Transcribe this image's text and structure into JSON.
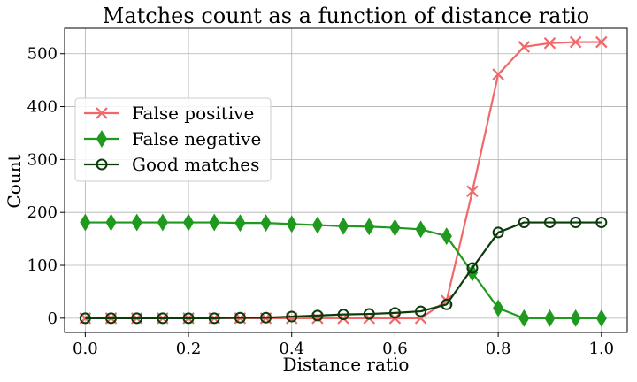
{
  "chart_data": {
    "type": "line",
    "title": "Matches count as a function of distance ratio",
    "xlabel": "Distance ratio",
    "ylabel": "Count",
    "xlim": [
      -0.04,
      1.05
    ],
    "ylim": [
      -27,
      548
    ],
    "xticks": [
      0.0,
      0.2,
      0.4,
      0.6,
      0.8,
      1.0
    ],
    "xtick_labels": [
      "0.0",
      "0.2",
      "0.4",
      "0.6",
      "0.8",
      "1.0"
    ],
    "yticks": [
      0,
      100,
      200,
      300,
      400,
      500
    ],
    "ytick_labels": [
      "0",
      "100",
      "200",
      "300",
      "400",
      "500"
    ],
    "grid": true,
    "legend_position": "center-left",
    "x": [
      0.0,
      0.05,
      0.1,
      0.15,
      0.2,
      0.25,
      0.3,
      0.35,
      0.4,
      0.45,
      0.5,
      0.55,
      0.6,
      0.65,
      0.7,
      0.75,
      0.8,
      0.85,
      0.9,
      0.95,
      1.0
    ],
    "series": [
      {
        "name": "False positive",
        "color": "#f0686a",
        "marker": "x",
        "values": [
          0,
          0,
          0,
          0,
          0,
          0,
          0,
          0,
          0,
          0,
          0,
          0,
          0,
          0,
          33,
          240,
          461,
          513,
          520,
          522,
          522
        ]
      },
      {
        "name": "False negative",
        "color": "#1f9a1f",
        "marker": "diamond",
        "values": [
          181,
          181,
          181,
          181,
          181,
          181,
          180,
          180,
          178,
          176,
          174,
          173,
          171,
          168,
          155,
          86,
          19,
          0,
          0,
          0,
          0
        ]
      },
      {
        "name": "Good matches",
        "color": "#0b3b0b",
        "marker": "circle",
        "values": [
          0,
          0,
          0,
          0,
          0,
          0,
          1,
          1,
          3,
          5,
          7,
          8,
          10,
          13,
          26,
          95,
          162,
          181,
          181,
          181,
          181
        ]
      }
    ]
  }
}
